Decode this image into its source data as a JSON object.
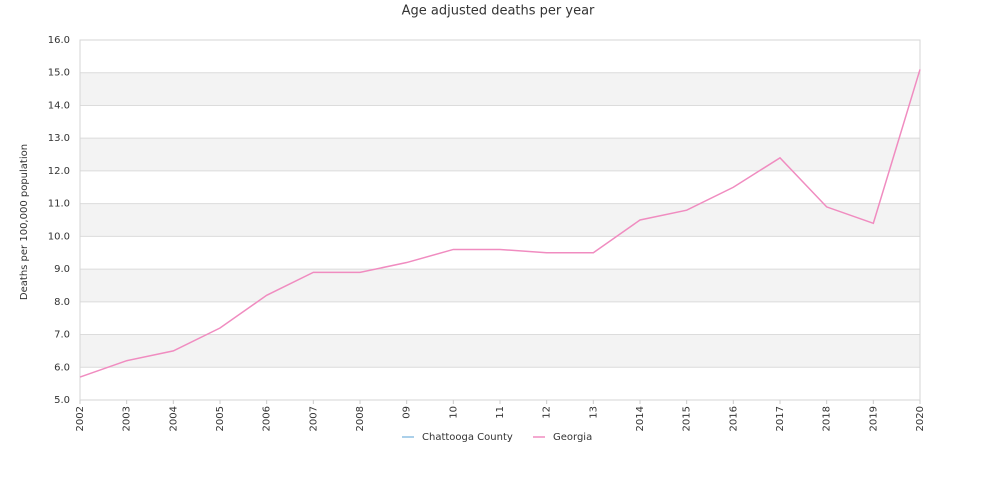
{
  "chart_data": {
    "type": "line",
    "title": "Age adjusted deaths per year",
    "y_label": "Deaths per 100,000 population",
    "categories": [
      "2002",
      "2003",
      "2004",
      "2005",
      "2006",
      "2007",
      "2008",
      "09",
      "10",
      "11",
      "12",
      "13",
      "2014",
      "2015",
      "2016",
      "2017",
      "2018",
      "2019",
      "2020"
    ],
    "series": [
      {
        "name": "Chattooga County",
        "color": "#8fc1e3",
        "values": [
          null,
          null,
          null,
          null,
          null,
          null,
          null,
          null,
          null,
          null,
          null,
          null,
          null,
          null,
          null,
          null,
          null,
          null,
          null
        ]
      },
      {
        "name": "Georgia",
        "color": "#f08cc0",
        "values": [
          5.7,
          6.2,
          6.5,
          7.2,
          8.2,
          8.9,
          8.9,
          9.2,
          9.6,
          9.6,
          9.5,
          9.5,
          10.5,
          10.8,
          11.5,
          12.4,
          10.9,
          10.4,
          15.1
        ]
      }
    ],
    "ylim": [
      5,
      16
    ],
    "yticks": [
      {
        "value": 5,
        "label": "5.0"
      },
      {
        "value": 6,
        "label": "6.0"
      },
      {
        "value": 7,
        "label": "7.0"
      },
      {
        "value": 8,
        "label": "8.0"
      },
      {
        "value": 9,
        "label": "9.0"
      },
      {
        "value": 10,
        "label": "10.0"
      },
      {
        "value": 11,
        "label": "11.0"
      },
      {
        "value": 12,
        "label": "12.0"
      },
      {
        "value": 13,
        "label": "13.0"
      },
      {
        "value": 14,
        "label": "14.0"
      },
      {
        "value": 15,
        "label": "15.0"
      },
      {
        "value": 16,
        "label": "16.0"
      }
    ],
    "grid": true,
    "legend": "bottom"
  }
}
